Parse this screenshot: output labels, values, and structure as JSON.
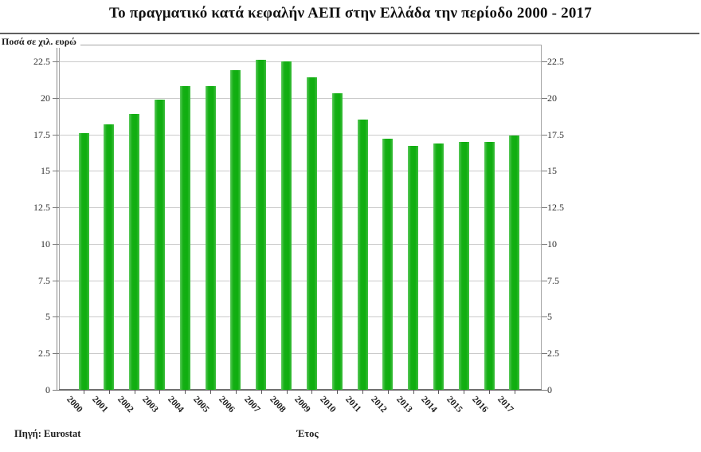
{
  "title": "Το πραγματικό κατά κεφαλήν ΑΕΠ στην Ελλάδα την περίοδο 2000 - 2017",
  "unit_label": "Ποσά σε χιλ. ευρώ",
  "footer": {
    "source": "Πηγή: Eurostat",
    "x_axis_title": "Έτος"
  },
  "colors": {
    "bar": "#14af14",
    "grid": "#cbcbcb",
    "frame": "#a5a5a5",
    "text": "#1c1c1c"
  },
  "chart_data": {
    "type": "bar",
    "title": "Το πραγματικό κατά κεφαλήν ΑΕΠ στην Ελλάδα την περίοδο 2000 - 2017",
    "categories": [
      "2000",
      "2001",
      "2002",
      "2003",
      "2004",
      "2005",
      "2006",
      "2007",
      "2008",
      "2009",
      "2010",
      "2011",
      "2012",
      "2013",
      "2014",
      "2015",
      "2016",
      "2017"
    ],
    "values": [
      17.6,
      18.2,
      18.9,
      19.9,
      20.8,
      20.8,
      21.9,
      22.6,
      22.5,
      21.4,
      20.3,
      18.5,
      17.2,
      16.7,
      16.9,
      17.0,
      17.0,
      17.4
    ],
    "xlabel": "Έτος",
    "ylabel": "Ποσά σε χιλ. ευρώ",
    "ylim": [
      0,
      23.6
    ],
    "yticks": [
      0,
      2.5,
      5,
      7.5,
      10,
      12.5,
      15,
      17.5,
      20,
      22.5
    ],
    "y_axis_sides": "both",
    "grid": true,
    "legend_position": "none",
    "bar_color": "#14af14",
    "source_note": "Πηγή: Eurostat"
  }
}
